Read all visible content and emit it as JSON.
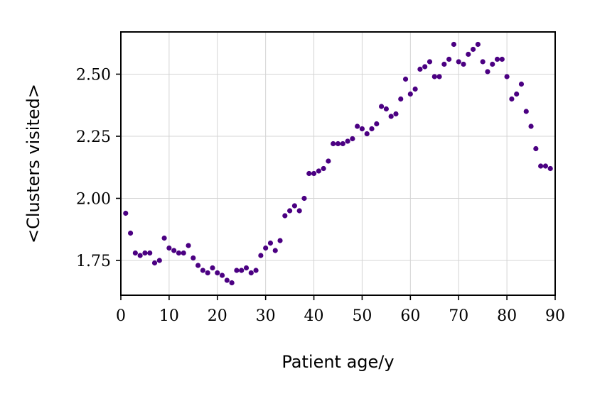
{
  "chart_data": {
    "type": "scatter",
    "xlabel": "Patient age/y",
    "ylabel": "<Clusters visited>",
    "xlim": [
      0,
      90
    ],
    "ylim": [
      1.61,
      2.67
    ],
    "xticks": [
      0,
      10,
      20,
      30,
      40,
      50,
      60,
      70,
      80,
      90
    ],
    "xtick_labels": [
      "0",
      "10",
      "20",
      "30",
      "40",
      "50",
      "60",
      "70",
      "80",
      "90"
    ],
    "yticks": [
      1.75,
      2.0,
      2.25,
      2.5
    ],
    "ytick_labels": [
      "1.75",
      "2.00",
      "2.25",
      "2.50"
    ],
    "grid": true,
    "marker_color": "#4b0082",
    "series": [
      {
        "x": [
          1,
          2,
          3,
          4,
          5,
          6,
          7,
          8,
          9,
          10,
          11,
          12,
          13,
          14,
          15,
          16,
          17,
          18,
          19,
          20,
          21,
          22,
          23,
          24,
          25,
          26,
          27,
          28,
          29,
          30,
          31,
          32,
          33,
          34,
          35,
          36,
          37,
          38,
          39,
          40,
          41,
          42,
          43,
          44,
          45,
          46,
          47,
          48,
          49,
          50,
          51,
          52,
          53,
          54,
          55,
          56,
          57,
          58,
          59,
          60,
          61,
          62,
          63,
          64,
          65,
          66,
          67,
          68,
          69,
          70,
          71,
          72,
          73,
          74,
          75,
          76,
          77,
          78,
          79,
          80,
          81,
          82,
          83,
          84,
          85,
          86,
          87,
          88,
          89
        ],
        "y": [
          1.94,
          1.86,
          1.78,
          1.77,
          1.78,
          1.78,
          1.74,
          1.75,
          1.84,
          1.8,
          1.79,
          1.78,
          1.78,
          1.81,
          1.76,
          1.73,
          1.71,
          1.7,
          1.72,
          1.7,
          1.69,
          1.67,
          1.66,
          1.71,
          1.71,
          1.72,
          1.7,
          1.71,
          1.77,
          1.8,
          1.82,
          1.79,
          1.83,
          1.93,
          1.95,
          1.97,
          1.95,
          2.0,
          2.1,
          2.1,
          2.11,
          2.12,
          2.15,
          2.22,
          2.22,
          2.22,
          2.23,
          2.24,
          2.29,
          2.28,
          2.26,
          2.28,
          2.3,
          2.37,
          2.36,
          2.33,
          2.34,
          2.4,
          2.48,
          2.42,
          2.44,
          2.52,
          2.53,
          2.55,
          2.49,
          2.49,
          2.54,
          2.56,
          2.62,
          2.55,
          2.54,
          2.58,
          2.6,
          2.62,
          2.55,
          2.51,
          2.54,
          2.56,
          2.56,
          2.49,
          2.4,
          2.42,
          2.46,
          2.35,
          2.29,
          2.2,
          2.13,
          2.13,
          2.12
        ]
      }
    ]
  }
}
